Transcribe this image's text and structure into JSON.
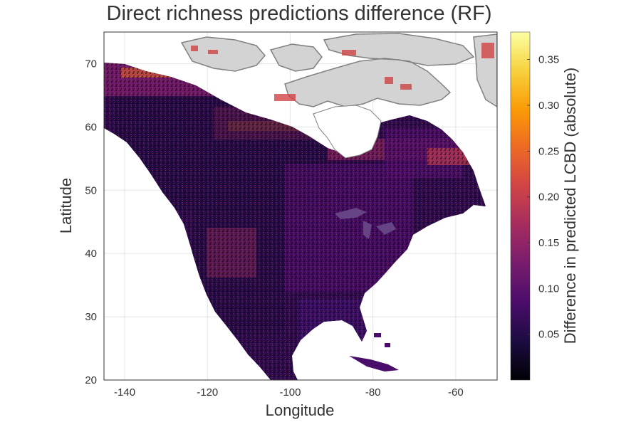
{
  "title": "Direct richness predictions difference (RF)",
  "x_axis": {
    "label": "Longitude",
    "ticks": [
      "-140",
      "-120",
      "-100",
      "-80",
      "-60"
    ]
  },
  "y_axis": {
    "label": "Latitude",
    "ticks": [
      "70",
      "60",
      "50",
      "40",
      "30",
      "20"
    ]
  },
  "colorbar": {
    "label": "Difference in predicted LCBD (absolute)",
    "ticks": [
      "0.35",
      "0.30",
      "0.25",
      "0.20",
      "0.15",
      "0.10",
      "0.05"
    ],
    "colormap": "inferno",
    "stops": [
      "#000004",
      "#1b0c41",
      "#4a0c6b",
      "#781c6d",
      "#a52c60",
      "#cf4446",
      "#ed6925",
      "#fb9b06",
      "#f7d13d",
      "#fcffa4"
    ]
  },
  "chart_data": {
    "type": "heatmap",
    "title": "Direct richness predictions difference (RF)",
    "xlabel": "Longitude",
    "ylabel": "Latitude",
    "xlim": [
      -145,
      -50
    ],
    "ylim": [
      20,
      75
    ],
    "x_ticks": [
      -140,
      -120,
      -100,
      -80,
      -60
    ],
    "y_ticks": [
      20,
      30,
      40,
      50,
      60,
      70
    ],
    "value_range": [
      0,
      0.38
    ],
    "colorbar_ticks": [
      0.05,
      0.1,
      0.15,
      0.2,
      0.25,
      0.3,
      0.35
    ],
    "grid": true,
    "no_data_color": "#d3d3d3",
    "no_data_outline": "#808080",
    "region": "North America"
  }
}
